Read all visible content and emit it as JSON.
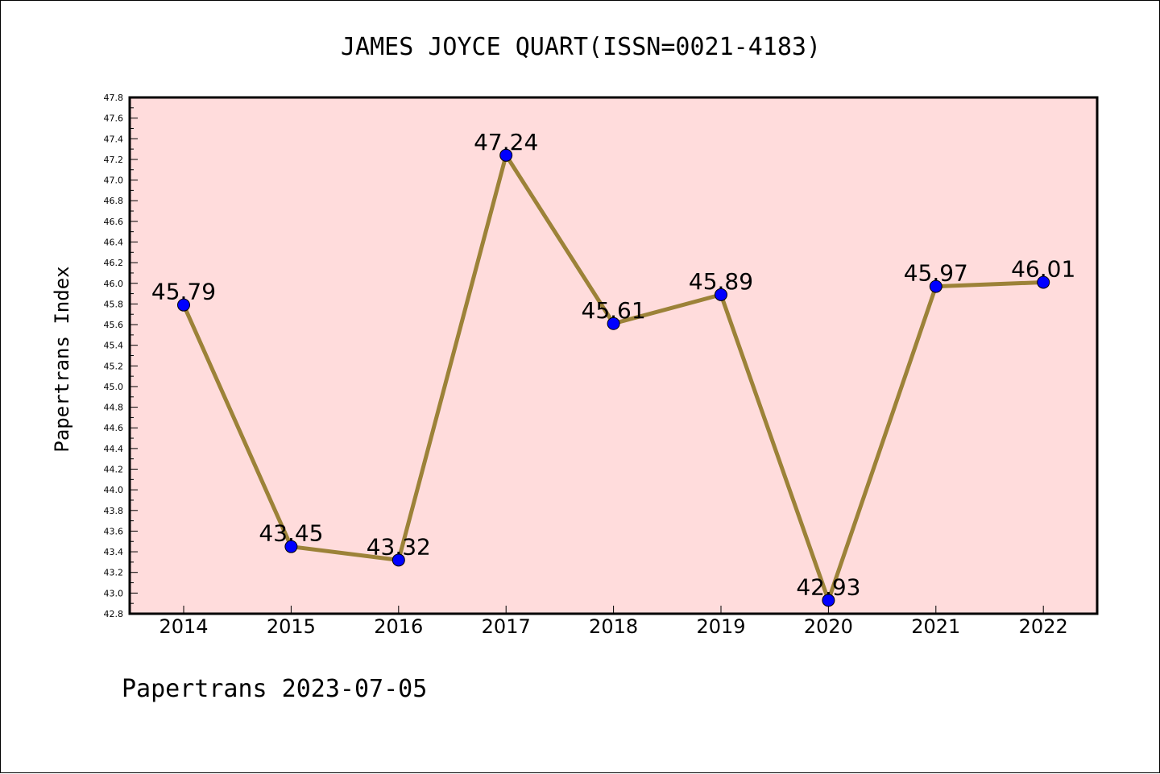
{
  "chart_data": {
    "type": "line",
    "title": "JAMES JOYCE QUART(ISSN=0021-4183)",
    "xlabel": "",
    "ylabel": "Papertrans Index",
    "categories": [
      "2014",
      "2015",
      "2016",
      "2017",
      "2018",
      "2019",
      "2020",
      "2021",
      "2022"
    ],
    "series": [
      {
        "values": [
          45.79,
          43.45,
          43.32,
          47.24,
          45.61,
          45.89,
          42.93,
          45.97,
          46.01
        ],
        "labels": [
          "45.79",
          "43.45",
          "43.32",
          "47.24",
          "45.61",
          "45.89",
          "42.93",
          "45.97",
          "46.01"
        ]
      }
    ],
    "ylim": [
      42.8,
      47.8
    ],
    "ytick_step": 0.2,
    "ytick_labels": [
      "42.8",
      "43.0",
      "43.2",
      "43.4",
      "43.6",
      "43.8",
      "44.0",
      "44.2",
      "44.4",
      "44.6",
      "44.8",
      "45.0",
      "45.2",
      "45.4",
      "45.6",
      "45.8",
      "46.0",
      "46.2",
      "46.4",
      "46.6",
      "46.8",
      "47.0",
      "47.2",
      "47.4",
      "47.6",
      "47.8"
    ],
    "grid": false,
    "legend": "none",
    "colors": {
      "plot_background": "#ffdcdc",
      "line": "#9c8238",
      "marker": "#0000ff",
      "axes": "#000000"
    }
  },
  "footer": {
    "text": "Papertrans 2023-07-05"
  }
}
